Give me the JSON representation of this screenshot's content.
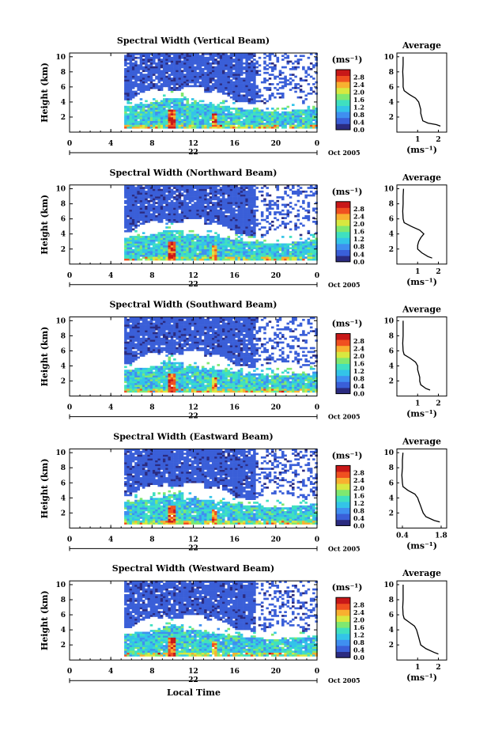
{
  "figure": {
    "xlabel": "Local Time",
    "date_label": "Oct 2005",
    "day_label": "22",
    "unit_label": "(ms⁻¹)",
    "avg_title": "Average",
    "avg_xlabel": "(ms⁻¹)",
    "colorbar_ticks": [
      "0.0",
      "0.4",
      "0.8",
      "1.2",
      "1.6",
      "2.0",
      "2.4",
      "2.8"
    ],
    "colorbar_colors": [
      "#2b2b80",
      "#3a5fd8",
      "#3f8ff0",
      "#33c4e8",
      "#3fe0c0",
      "#7fe870",
      "#d8e840",
      "#f8b030",
      "#f05020",
      "#c81818"
    ]
  },
  "chart_data": [
    {
      "type": "heatmap",
      "title": "Spectral Width (Vertical Beam)",
      "ylabel": "Height (km)",
      "xlim": [
        0,
        24
      ],
      "ylim": [
        0,
        10.5
      ],
      "xticks": [
        "0",
        "4",
        "8",
        "12",
        "16",
        "20",
        "0"
      ],
      "yticks": [
        "2",
        "4",
        "6",
        "8",
        "10"
      ],
      "average": {
        "title": "Average",
        "xticks": [
          "1",
          "2"
        ],
        "xlim": [
          0,
          2.4
        ],
        "yticks": [
          "2",
          "4",
          "6",
          "8",
          "10"
        ],
        "ylim": [
          0,
          10.5
        ],
        "height": [
          0.8,
          1.0,
          1.2,
          1.5,
          2,
          2.5,
          3,
          3.5,
          4,
          4.5,
          5,
          5.5,
          6,
          7,
          8,
          9,
          10
        ],
        "value": [
          2.1,
          1.9,
          1.5,
          1.25,
          1.2,
          1.15,
          1.15,
          1.1,
          1.05,
          0.9,
          0.6,
          0.35,
          0.3,
          0.3,
          0.28,
          0.3,
          0.3
        ]
      }
    },
    {
      "type": "heatmap",
      "title": "Spectral Width (Northward Beam)",
      "ylabel": "Height (km)",
      "xlim": [
        0,
        24
      ],
      "ylim": [
        0,
        10.5
      ],
      "xticks": [
        "0",
        "4",
        "8",
        "12",
        "16",
        "20",
        "0"
      ],
      "yticks": [
        "2",
        "4",
        "6",
        "8",
        "10"
      ],
      "average": {
        "title": "Average",
        "xticks": [
          "1",
          "2"
        ],
        "xlim": [
          0,
          2.4
        ],
        "yticks": [
          "2",
          "4",
          "6",
          "8",
          "10"
        ],
        "ylim": [
          0,
          10.5
        ],
        "height": [
          0.8,
          1.0,
          1.5,
          2,
          2.5,
          3,
          3.5,
          4,
          4.5,
          5,
          5.5,
          6,
          7,
          8,
          9,
          10
        ],
        "value": [
          1.7,
          1.5,
          1.2,
          1.0,
          1.0,
          1.05,
          1.15,
          1.3,
          1.1,
          0.7,
          0.35,
          0.3,
          0.28,
          0.3,
          0.3,
          0.32
        ]
      }
    },
    {
      "type": "heatmap",
      "title": "Spectral Width (Southward Beam)",
      "ylabel": "Height (km)",
      "xlim": [
        0,
        24
      ],
      "ylim": [
        0,
        10.5
      ],
      "xticks": [
        "0",
        "4",
        "8",
        "12",
        "16",
        "20",
        "0"
      ],
      "yticks": [
        "2",
        "4",
        "6",
        "8",
        "10"
      ],
      "average": {
        "title": "Average",
        "xticks": [
          "1",
          "2"
        ],
        "xlim": [
          0,
          2.4
        ],
        "yticks": [
          "2",
          "4",
          "6",
          "8",
          "10"
        ],
        "ylim": [
          0,
          10.5
        ],
        "height": [
          0.8,
          1.0,
          1.5,
          2,
          2.5,
          3,
          3.5,
          4,
          4.5,
          5,
          5.5,
          6,
          7,
          8,
          9,
          10
        ],
        "value": [
          1.6,
          1.4,
          1.15,
          1.1,
          1.1,
          1.05,
          1.0,
          1.0,
          0.9,
          0.65,
          0.35,
          0.3,
          0.28,
          0.3,
          0.3,
          0.3
        ]
      }
    },
    {
      "type": "heatmap",
      "title": "Spectral Width (Eastward Beam)",
      "ylabel": "Height (km)",
      "xlim": [
        0,
        24
      ],
      "ylim": [
        0,
        10.5
      ],
      "xticks": [
        "0",
        "4",
        "8",
        "12",
        "16",
        "20",
        "0"
      ],
      "yticks": [
        "2",
        "4",
        "6",
        "8",
        "10"
      ],
      "average": {
        "title": "Average",
        "xticks": [
          "0.4",
          "1.8"
        ],
        "xlim": [
          0.2,
          2.0
        ],
        "yticks": [
          "2",
          "4",
          "6",
          "8",
          "10"
        ],
        "ylim": [
          0,
          10.5
        ],
        "height": [
          0.8,
          1.0,
          1.5,
          2,
          2.5,
          3,
          3.5,
          4,
          4.5,
          5,
          5.5,
          6,
          7,
          8,
          9,
          10
        ],
        "value": [
          1.75,
          1.55,
          1.25,
          1.15,
          1.1,
          1.05,
          1.0,
          0.95,
          0.85,
          0.6,
          0.42,
          0.4,
          0.38,
          0.4,
          0.4,
          0.42
        ]
      }
    },
    {
      "type": "heatmap",
      "title": "Spectral Width (Westward Beam)",
      "ylabel": "Height (km)",
      "xlim": [
        0,
        24
      ],
      "ylim": [
        0,
        10.5
      ],
      "xticks": [
        "0",
        "4",
        "8",
        "12",
        "16",
        "20",
        "0"
      ],
      "yticks": [
        "2",
        "4",
        "6",
        "8",
        "10"
      ],
      "average": {
        "title": "Average",
        "xticks": [
          "1",
          "2"
        ],
        "xlim": [
          0,
          2.4
        ],
        "yticks": [
          "2",
          "4",
          "6",
          "8",
          "10"
        ],
        "ylim": [
          0,
          10.5
        ],
        "height": [
          0.8,
          1.0,
          1.5,
          2,
          2.5,
          3,
          3.5,
          4,
          4.5,
          5,
          5.5,
          6,
          7,
          8,
          9,
          10
        ],
        "value": [
          2.0,
          1.8,
          1.4,
          1.15,
          1.1,
          1.05,
          1.0,
          0.95,
          0.85,
          0.6,
          0.35,
          0.3,
          0.28,
          0.3,
          0.3,
          0.3
        ]
      }
    }
  ]
}
